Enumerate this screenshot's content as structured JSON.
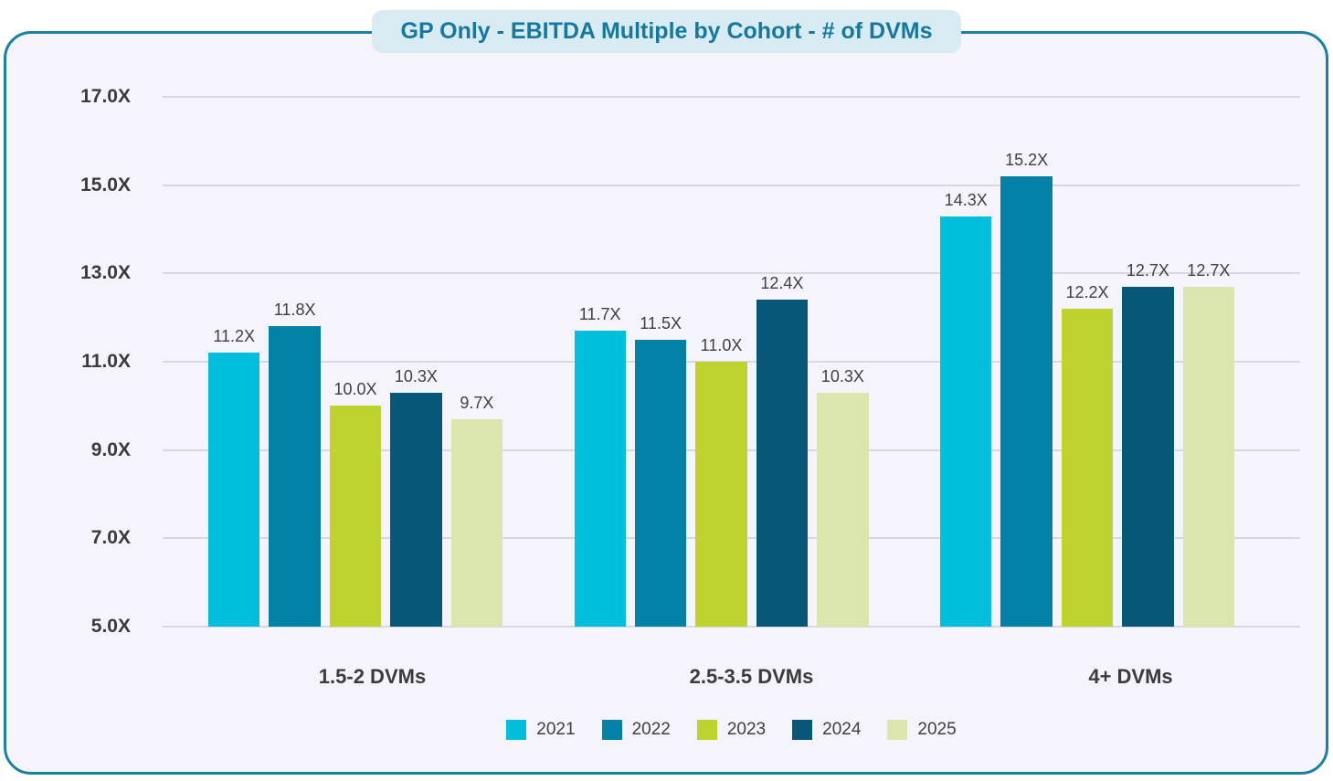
{
  "page": {
    "background": "#FFFFFF"
  },
  "card": {
    "background": "#F5F4FC",
    "border_color": "#1A80A4"
  },
  "title": {
    "text": "GP Only - EBITDA Multiple by Cohort - # of DVMs",
    "color": "#15799F",
    "background": "#D8EAF2"
  },
  "chart_data": {
    "type": "bar",
    "title": "GP Only - EBITDA Multiple by Cohort - # of DVMs",
    "categories": [
      "1.5-2 DVMs",
      "2.5-3.5 DVMs",
      "4+ DVMs"
    ],
    "series": [
      {
        "name": "2021",
        "color": "#00BFDC",
        "values": [
          11.2,
          11.7,
          14.3
        ]
      },
      {
        "name": "2022",
        "color": "#0081A5",
        "values": [
          11.8,
          11.5,
          15.2
        ]
      },
      {
        "name": "2023",
        "color": "#BFD32E",
        "values": [
          10.0,
          11.0,
          12.2
        ]
      },
      {
        "name": "2024",
        "color": "#075878",
        "values": [
          10.3,
          12.4,
          12.7
        ]
      },
      {
        "name": "2025",
        "color": "#DBE6AF",
        "values": [
          9.7,
          10.3,
          12.7
        ]
      }
    ],
    "y_axis": {
      "min": 5,
      "max": 17,
      "tick_labels": [
        "17.0X",
        "15.0X",
        "13.0X",
        "11.0X",
        "9.0X",
        "7.0X",
        "5.0X"
      ]
    },
    "value_label_suffix": "X",
    "value_label_decimals": 1,
    "grid": true,
    "gridline_color": "#D8D8DE",
    "legend_position": "bottom",
    "text_colors": {
      "axis": "#3B3B3B",
      "value_labels": "#404040",
      "legend": "#3F3F3F"
    }
  }
}
